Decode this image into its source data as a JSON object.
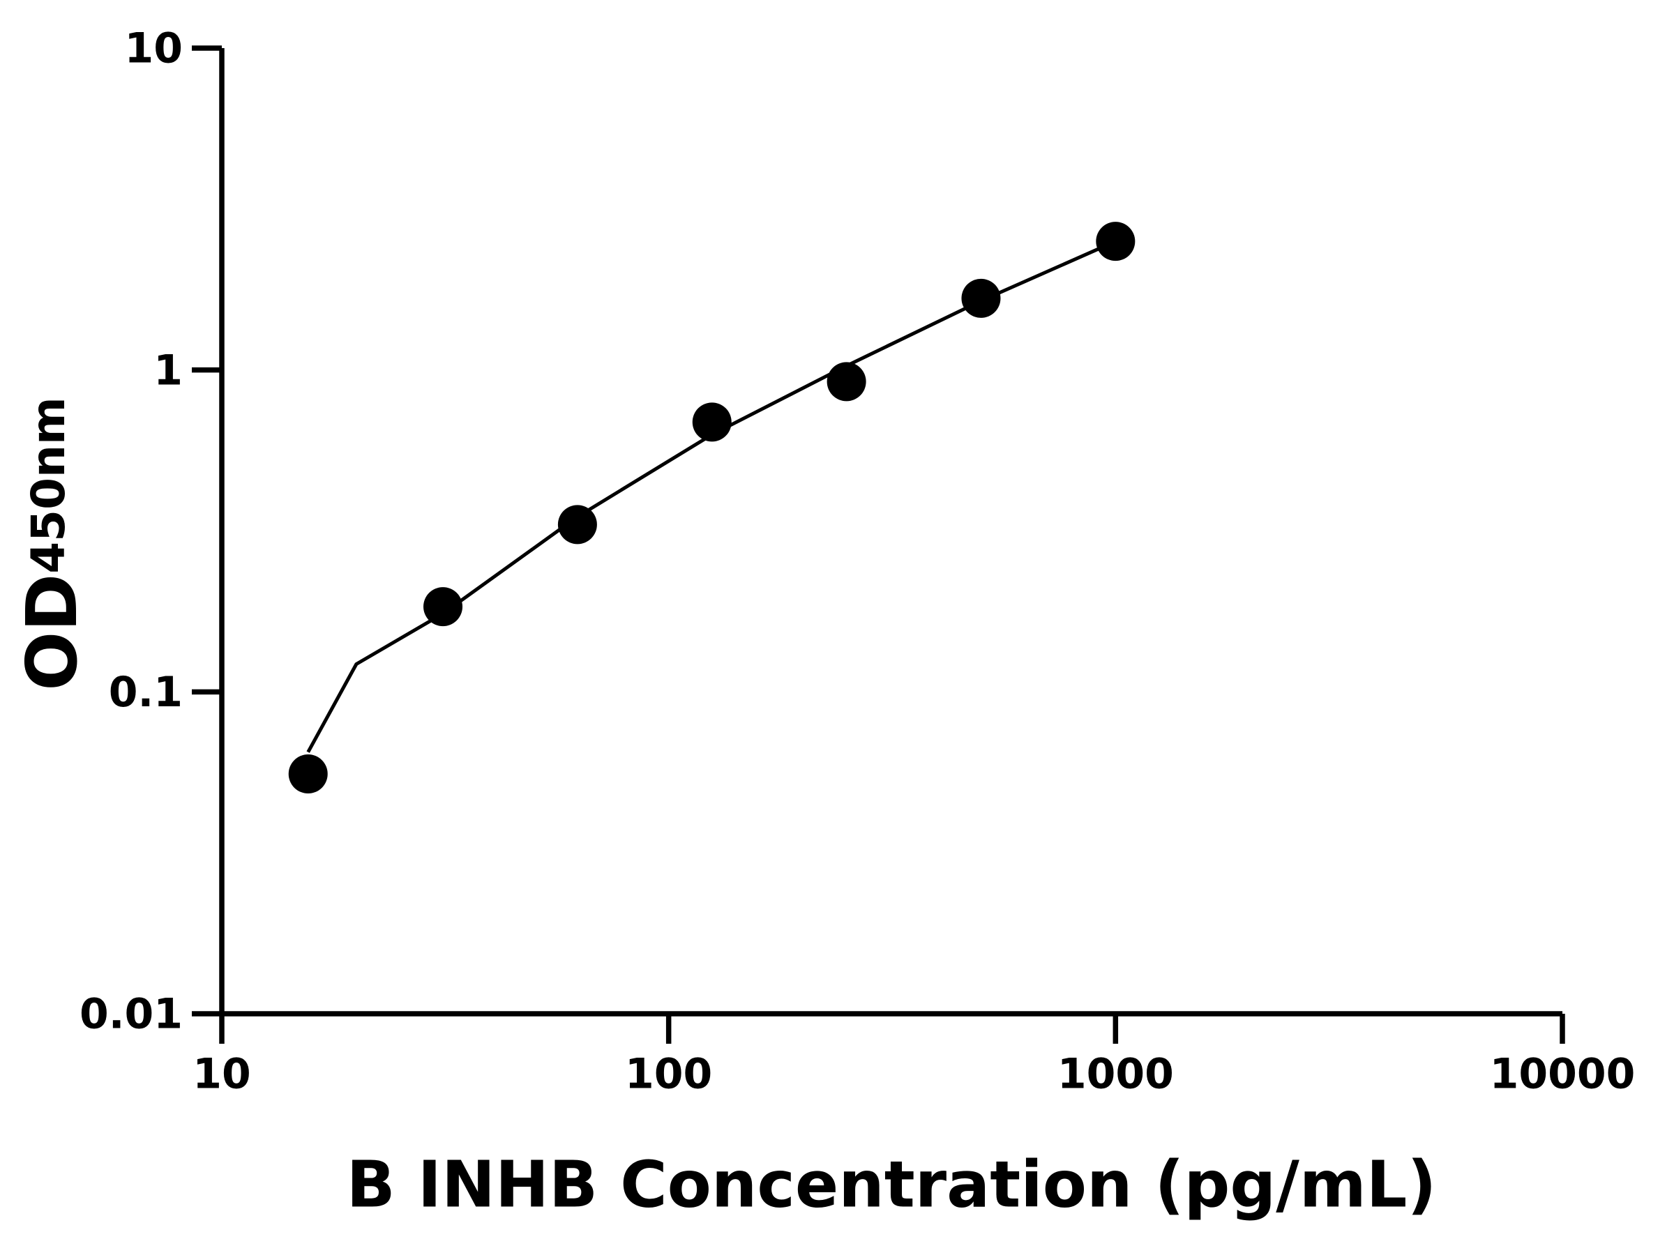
{
  "chart_data": {
    "type": "scatter",
    "xlabel": "B INHB Concentration (pg/mL)",
    "ylabel": {
      "text": "OD",
      "subscript": "450nm"
    },
    "x": [
      15.6,
      31.25,
      62.5,
      125,
      250,
      500,
      1000
    ],
    "values": [
      0.0556,
      0.184,
      0.331,
      0.689,
      0.92,
      1.67,
      2.51
    ],
    "color": "#000000",
    "curve": {
      "x": [
        15.6,
        20,
        31.25,
        62.5,
        125,
        250,
        500,
        1000
      ],
      "values": [
        0.065,
        0.122,
        0.175,
        0.35,
        0.63,
        1.03,
        1.64,
        2.51
      ]
    },
    "xscale": "log",
    "yscale": "log",
    "xlim": [
      10,
      10000
    ],
    "ylim": [
      0.01,
      10
    ],
    "xticks": [
      10,
      100,
      1000,
      10000
    ],
    "yticks": [
      0.01,
      0.1,
      1,
      10
    ],
    "grid": false
  }
}
